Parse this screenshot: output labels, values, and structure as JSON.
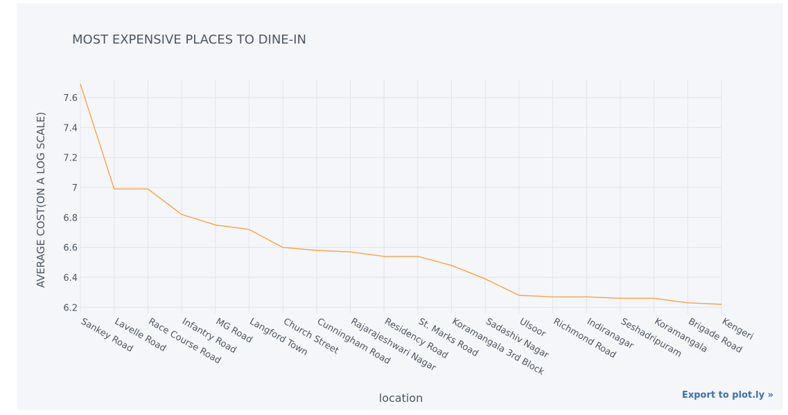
{
  "chart_data": {
    "type": "line",
    "title": "MOST EXPENSIVE PLACES TO DINE-IN",
    "xlabel": "location",
    "ylabel": "AVERAGE COST(ON A LOG SCALE)",
    "ylim": [
      6.16,
      7.72
    ],
    "yticks": [
      6.2,
      6.4,
      6.6,
      6.8,
      7,
      7.2,
      7.4,
      7.6
    ],
    "ytick_labels": [
      "6.2",
      "6.4",
      "6.6",
      "6.8",
      "7",
      "7.2",
      "7.4",
      "7.6"
    ],
    "grid": true,
    "line_color": "#f7a341",
    "categories": [
      "Sankey Road",
      "Lavelle Road",
      "Race Course Road",
      "Infantry Road",
      "MG Road",
      "Langford Town",
      "Church Street",
      "Cunningham Road",
      "Rajarajeshwari Nagar",
      "Residency Road",
      "St. Marks Road",
      "Koramangala 3rd Block",
      "Sadashiv Nagar",
      "Ulsoor",
      "Richmond Road",
      "Indiranagar",
      "Seshadripuram",
      "Koramangala",
      "Brigade Road",
      "Kengeri"
    ],
    "values": [
      7.69,
      6.99,
      6.99,
      6.82,
      6.75,
      6.72,
      6.6,
      6.58,
      6.57,
      6.54,
      6.54,
      6.48,
      6.39,
      6.28,
      6.27,
      6.27,
      6.26,
      6.26,
      6.23,
      6.22
    ]
  },
  "export_label": "Export to plot.ly »"
}
